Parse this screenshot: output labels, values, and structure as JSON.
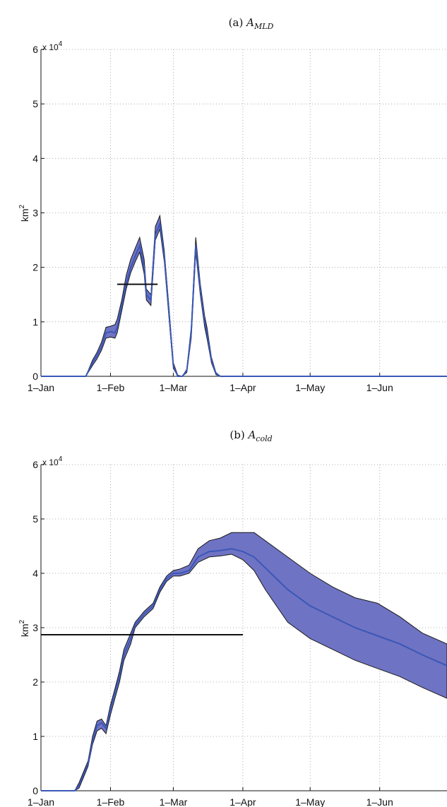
{
  "figure": {
    "colors": {
      "band": "#6f73c3",
      "band_edge": "#1a1a1a",
      "mean_line": "#3a57b8",
      "threshold": "#111111",
      "grid": "#9a9a9a"
    }
  },
  "chart_data": [
    {
      "type": "area",
      "panel_label": "(a)",
      "title_symbol": "A",
      "title_subscript": "MLD",
      "ylabel": "km",
      "ylabel_superscript": "2",
      "y_multiplier_text": "x 10",
      "y_multiplier_exponent": "4",
      "x_tick_labels": [
        "1–Jan",
        "1–Feb",
        "1–Mar",
        "1–Apr",
        "1–May",
        "1–Jun"
      ],
      "x_tick_days": [
        0,
        31,
        59,
        90,
        120,
        151
      ],
      "x_range_days": [
        0,
        181
      ],
      "y_tick_labels": [
        "0",
        "1",
        "2",
        "3",
        "4",
        "5",
        "6"
      ],
      "ylim": [
        0,
        60000
      ],
      "grid": true,
      "x_days": [
        0,
        20,
        23,
        25,
        27,
        29,
        31,
        33,
        34,
        36,
        38,
        40,
        42,
        44,
        46,
        47,
        49,
        51,
        53,
        55,
        57,
        59,
        61,
        63,
        65,
        67,
        69,
        71,
        73,
        74,
        76,
        78,
        80,
        82,
        84,
        86,
        88,
        181
      ],
      "mean": [
        0,
        0,
        2500,
        3800,
        5500,
        8000,
        8200,
        8000,
        9000,
        13000,
        17000,
        20000,
        22000,
        24000,
        20000,
        15000,
        14000,
        26000,
        28000,
        22000,
        12000,
        2000,
        0,
        0,
        1000,
        8000,
        24000,
        16000,
        10000,
        8000,
        3000,
        500,
        0,
        0,
        0,
        0,
        0,
        0
      ],
      "lower": [
        0,
        0,
        2000,
        3200,
        4800,
        7000,
        7200,
        7000,
        8000,
        12000,
        16000,
        19000,
        21000,
        22800,
        18800,
        14000,
        13000,
        25000,
        27000,
        21000,
        11000,
        1500,
        0,
        0,
        700,
        7000,
        22800,
        15000,
        9000,
        7000,
        2500,
        300,
        0,
        0,
        0,
        0,
        0,
        0
      ],
      "upper": [
        0,
        0,
        3000,
        4400,
        6300,
        9000,
        9200,
        9500,
        10500,
        14000,
        18500,
        21500,
        23500,
        25500,
        21500,
        16000,
        15000,
        27500,
        29500,
        23000,
        13000,
        2500,
        200,
        0,
        1300,
        9000,
        25500,
        17000,
        11000,
        9000,
        3500,
        700,
        0,
        0,
        0,
        0,
        0,
        0
      ],
      "threshold": {
        "value": 16900,
        "x_start_days": 34,
        "x_end_days": 52
      }
    },
    {
      "type": "area",
      "panel_label": "(b)",
      "title_symbol": "A",
      "title_subscript": "cold",
      "ylabel": "km",
      "ylabel_superscript": "2",
      "y_multiplier_text": "x 10",
      "y_multiplier_exponent": "4",
      "x_tick_labels": [
        "1–Jan",
        "1–Feb",
        "1–Mar",
        "1–Apr",
        "1–May",
        "1–Jun"
      ],
      "x_tick_days": [
        0,
        31,
        59,
        90,
        120,
        151
      ],
      "x_range_days": [
        0,
        181
      ],
      "y_tick_labels": [
        "0",
        "1",
        "2",
        "3",
        "4",
        "5",
        "6"
      ],
      "ylim": [
        0,
        60000
      ],
      "grid": true,
      "x_days": [
        0,
        15,
        17,
        19,
        21,
        23,
        25,
        27,
        29,
        31,
        33,
        35,
        37,
        40,
        42,
        44,
        46,
        50,
        53,
        56,
        59,
        62,
        66,
        70,
        75,
        80,
        85,
        90,
        95,
        100,
        110,
        120,
        130,
        140,
        150,
        160,
        170,
        181
      ],
      "mean": [
        0,
        0,
        1000,
        3000,
        5000,
        9000,
        12000,
        12500,
        11500,
        15000,
        18000,
        21000,
        25000,
        28000,
        30500,
        31500,
        32500,
        34000,
        37000,
        39000,
        40000,
        40000,
        40500,
        43000,
        44000,
        44200,
        44500,
        44000,
        43000,
        41000,
        37000,
        34000,
        32000,
        30000,
        28500,
        27000,
        25000,
        23000
      ],
      "lower": [
        0,
        0,
        500,
        2500,
        4500,
        8500,
        11000,
        11500,
        10500,
        14000,
        17000,
        20000,
        24000,
        27000,
        30000,
        31000,
        32000,
        33500,
        36500,
        38500,
        39500,
        39500,
        40000,
        42000,
        43000,
        43200,
        43500,
        42500,
        40500,
        37000,
        31000,
        28000,
        26000,
        24000,
        22500,
        21000,
        19000,
        17000
      ],
      "upper": [
        0,
        0,
        1500,
        3500,
        5500,
        10000,
        12800,
        13200,
        12000,
        15800,
        18800,
        22000,
        26000,
        29000,
        31000,
        32000,
        33000,
        34500,
        37500,
        39500,
        40500,
        40800,
        41500,
        44500,
        46000,
        46500,
        47500,
        47500,
        47500,
        46000,
        43000,
        40000,
        37500,
        35500,
        34500,
        32000,
        29000,
        27000
      ],
      "threshold": {
        "value": 28700,
        "x_start_days": 0,
        "x_end_days": 90
      }
    }
  ]
}
